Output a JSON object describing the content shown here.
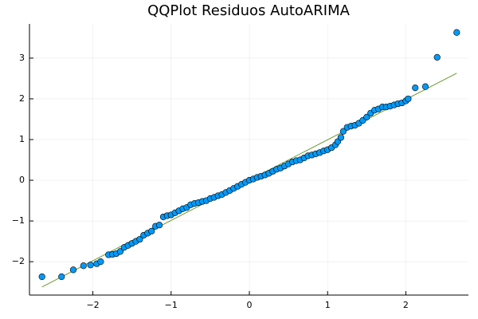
{
  "chart_data": {
    "type": "scatter",
    "title": "QQPlot Residuos AutoARIMA",
    "xlim": [
      -2.81,
      2.8
    ],
    "ylim": [
      -2.82,
      3.84
    ],
    "xticks": [
      {
        "value": -2,
        "label": "−2"
      },
      {
        "value": -1,
        "label": "−1"
      },
      0,
      1,
      2
    ],
    "yticks": [
      {
        "value": -2,
        "label": "−2"
      },
      {
        "value": -1,
        "label": "−1"
      },
      0,
      1,
      2,
      3
    ],
    "grid": true,
    "points": {
      "color": "#009af9",
      "x": [
        -2.65,
        -2.4,
        -2.25,
        -2.12,
        -2.03,
        -1.95,
        -1.9,
        -1.8,
        -1.75,
        -1.7,
        -1.65,
        -1.6,
        -1.55,
        -1.5,
        -1.45,
        -1.4,
        -1.35,
        -1.3,
        -1.25,
        -1.2,
        -1.15,
        -1.1,
        -1.05,
        -1.0,
        -0.95,
        -0.9,
        -0.85,
        -0.8,
        -0.75,
        -0.7,
        -0.65,
        -0.6,
        -0.55,
        -0.5,
        -0.45,
        -0.4,
        -0.35,
        -0.3,
        -0.25,
        -0.2,
        -0.15,
        -0.1,
        -0.05,
        0,
        0.05,
        0.1,
        0.15,
        0.2,
        0.25,
        0.3,
        0.35,
        0.4,
        0.45,
        0.5,
        0.55,
        0.6,
        0.65,
        0.7,
        0.75,
        0.8,
        0.85,
        0.9,
        0.95,
        1.0,
        1.05,
        1.1,
        1.13,
        1.17,
        1.2,
        1.25,
        1.3,
        1.35,
        1.4,
        1.45,
        1.5,
        1.55,
        1.6,
        1.65,
        1.7,
        1.75,
        1.8,
        1.85,
        1.9,
        1.95,
        2.0,
        2.03,
        2.12,
        2.25,
        2.4,
        2.65
      ],
      "y": [
        -2.37,
        -2.37,
        -2.2,
        -2.1,
        -2.08,
        -2.05,
        -2.0,
        -1.83,
        -1.82,
        -1.8,
        -1.75,
        -1.65,
        -1.6,
        -1.55,
        -1.5,
        -1.45,
        -1.35,
        -1.3,
        -1.25,
        -1.13,
        -1.1,
        -0.9,
        -0.87,
        -0.85,
        -0.8,
        -0.75,
        -0.7,
        -0.67,
        -0.6,
        -0.57,
        -0.55,
        -0.52,
        -0.5,
        -0.45,
        -0.42,
        -0.38,
        -0.35,
        -0.3,
        -0.25,
        -0.2,
        -0.15,
        -0.1,
        -0.05,
        0,
        0.03,
        0.07,
        0.1,
        0.13,
        0.17,
        0.22,
        0.27,
        0.3,
        0.35,
        0.4,
        0.45,
        0.48,
        0.5,
        0.55,
        0.6,
        0.62,
        0.65,
        0.68,
        0.72,
        0.75,
        0.8,
        0.87,
        0.95,
        1.05,
        1.2,
        1.3,
        1.33,
        1.35,
        1.4,
        1.47,
        1.55,
        1.65,
        1.72,
        1.75,
        1.8,
        1.8,
        1.82,
        1.85,
        1.88,
        1.9,
        1.95,
        2.0,
        2.27,
        2.3,
        3.02,
        3.63
      ]
    },
    "reference_line": {
      "color": "#6b9a2f",
      "x": [
        -2.65,
        2.65
      ],
      "y": [
        -2.62,
        2.63
      ]
    }
  }
}
